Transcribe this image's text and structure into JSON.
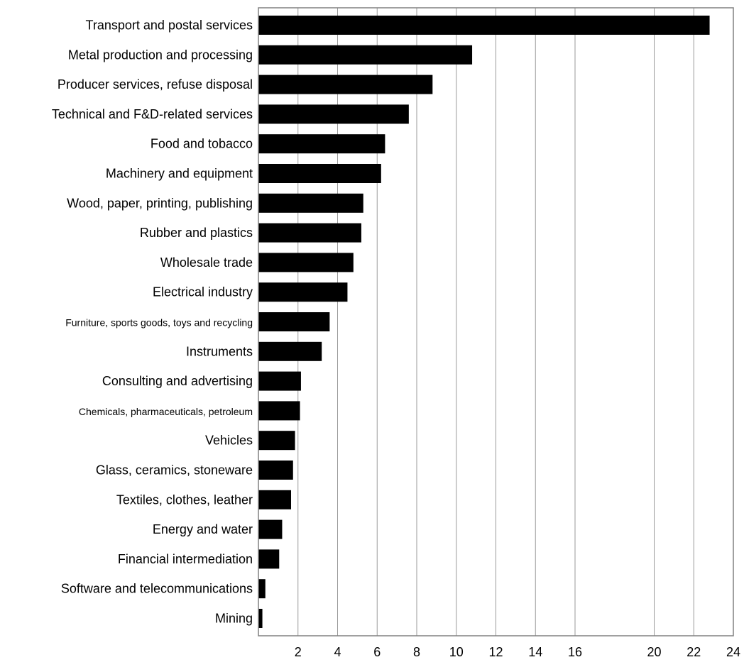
{
  "chart_data": {
    "type": "bar",
    "orientation": "horizontal",
    "title": "",
    "xlabel": "",
    "ylabel": "",
    "xlim": [
      0,
      24
    ],
    "grid": true,
    "legend": "none",
    "bar_color": "#000000",
    "tick_labels": [
      "2",
      "4",
      "6",
      "8",
      "10",
      "12",
      "14",
      "16",
      "20",
      "22",
      "24"
    ],
    "categories": [
      "Transport and postal services",
      "Metal production and processing",
      "Producer services, refuse disposal",
      "Technical and F&D-related services",
      "Food and tobacco",
      "Machinery and equipment",
      "Wood, paper, printing, publishing",
      "Rubber and plastics",
      "Wholesale trade",
      "Electrical industry",
      "Furniture, sports goods, toys and recycling",
      "Instruments",
      "Consulting and advertising",
      "Chemicals, pharmaceuticals, petroleum",
      "Vehicles",
      "Glass, ceramics, stoneware",
      "Textiles, clothes, leather",
      "Energy and water",
      "Financial intermediation",
      "Software and telecommunications",
      "Mining"
    ],
    "values": [
      22.8,
      10.8,
      8.8,
      7.6,
      6.4,
      6.2,
      5.3,
      5.2,
      4.8,
      4.5,
      3.6,
      3.2,
      2.15,
      2.1,
      1.85,
      1.75,
      1.65,
      1.2,
      1.05,
      0.35,
      0.2
    ]
  }
}
